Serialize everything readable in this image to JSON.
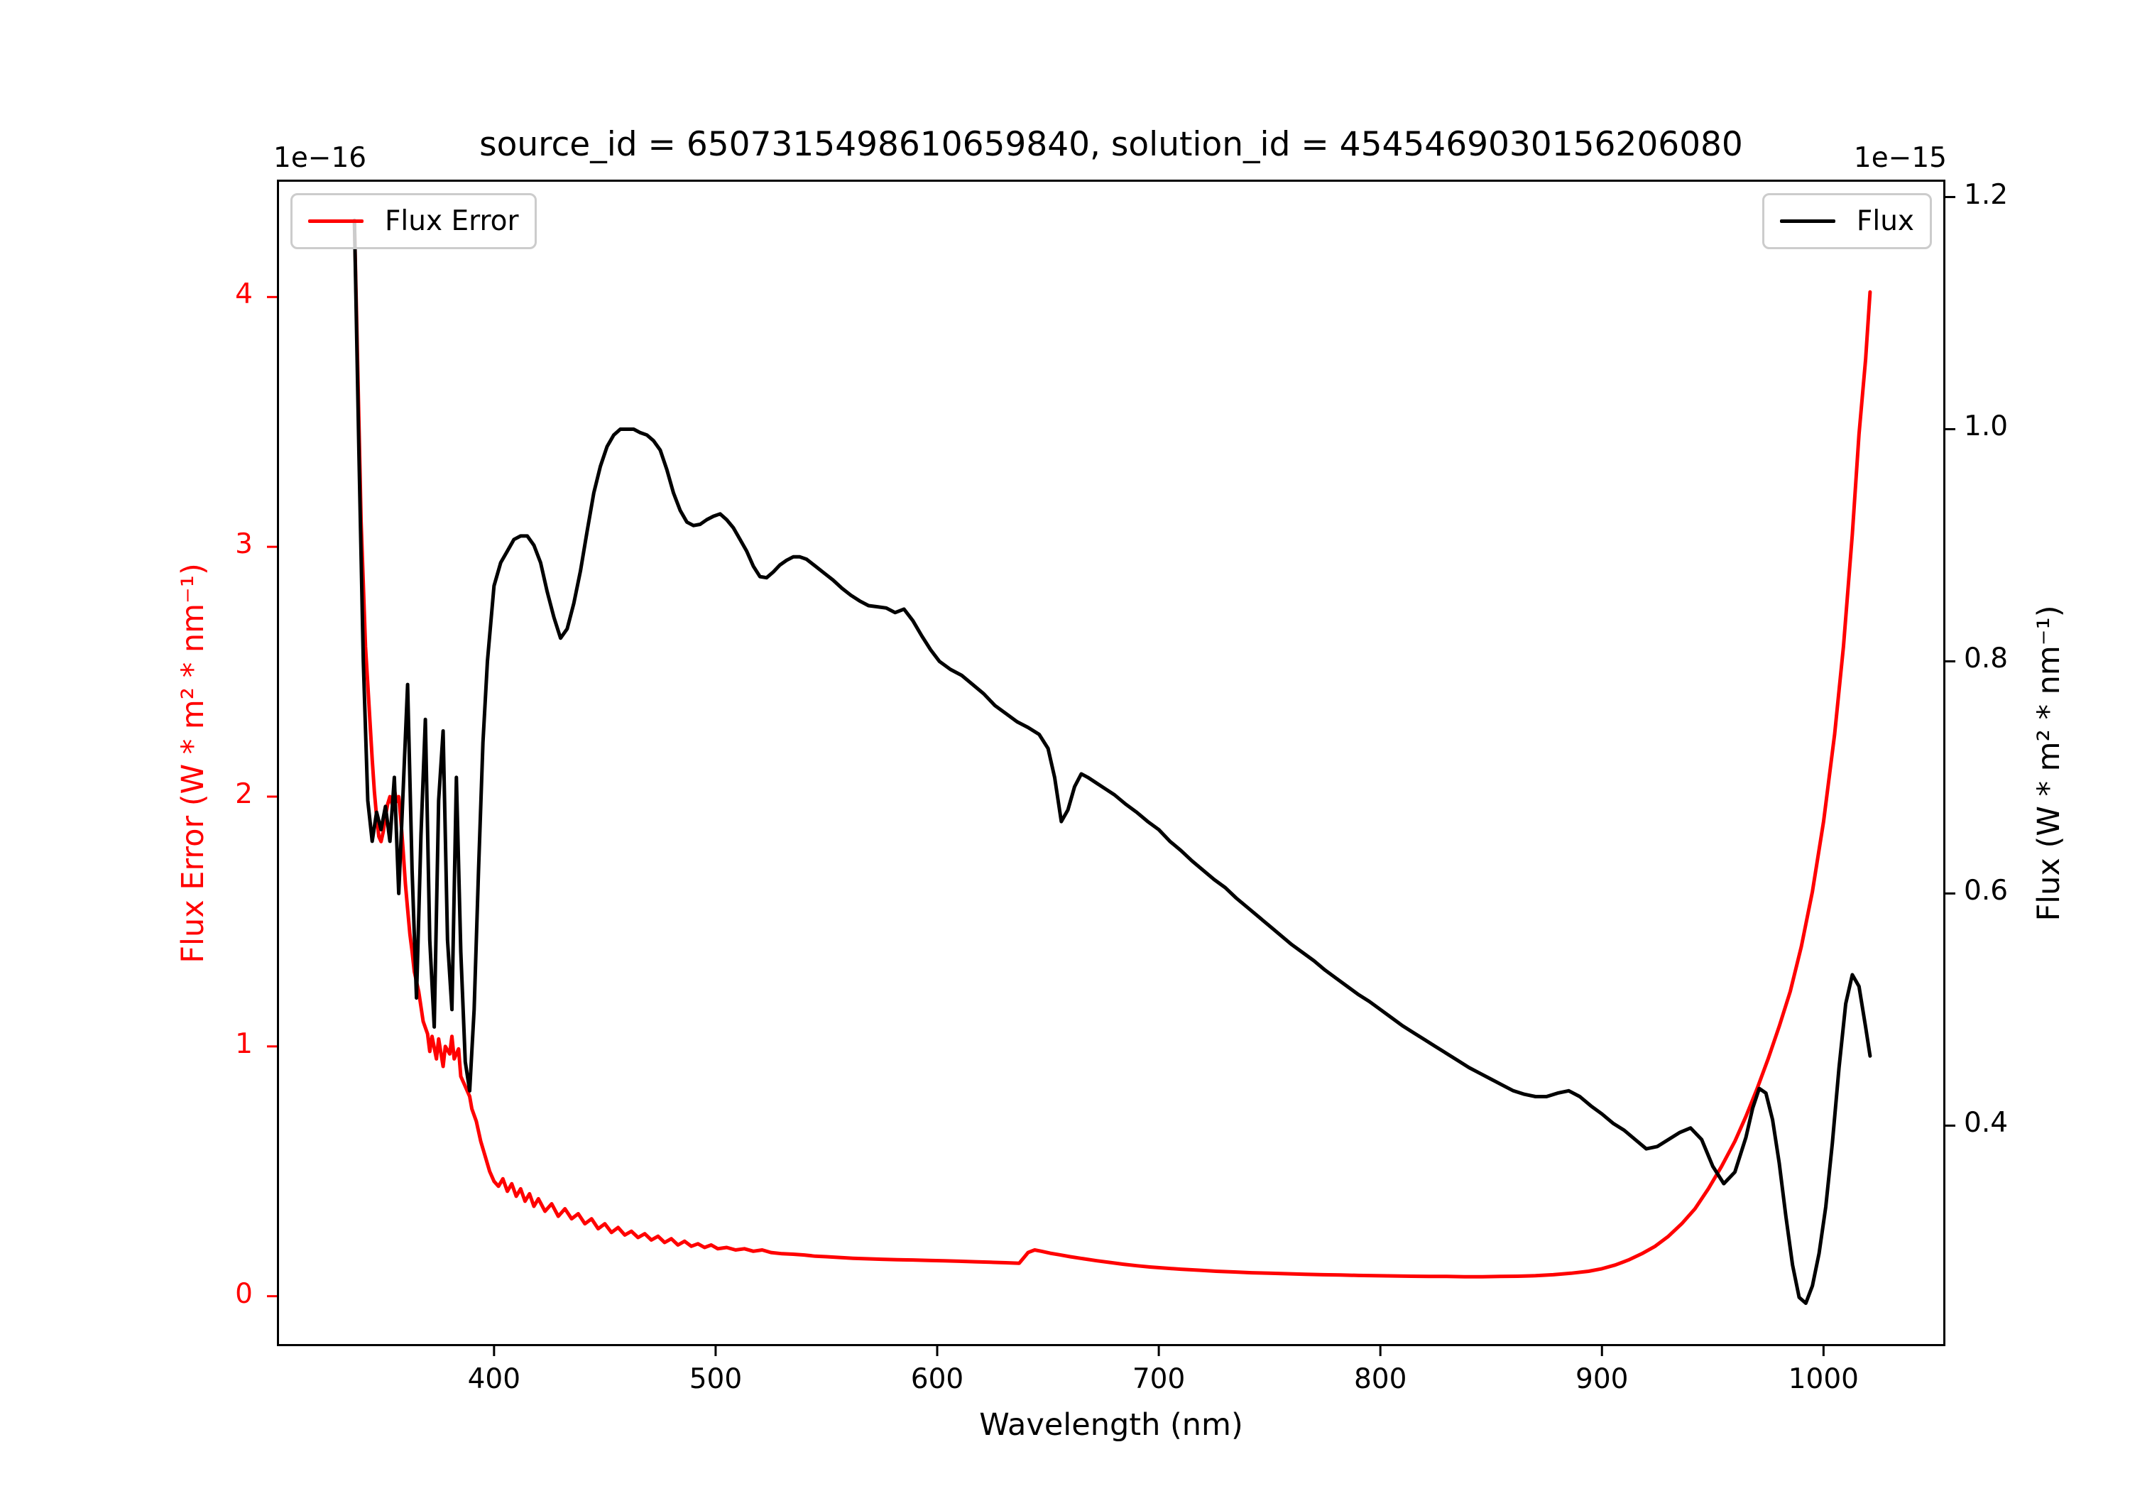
{
  "chart_data": {
    "type": "line",
    "title": "source_id = 6507315498610659840, solution_id = 4545469030156206080",
    "xlabel": "Wavelength (nm)",
    "ylabel_left": "Flux Error (W * m² * nm⁻¹)",
    "ylabel_right": "Flux (W * m² * nm⁻¹)",
    "offset_text_left": "1e−16",
    "offset_text_right": "1e−15",
    "grid": false,
    "xlim": [
      302,
      1055
    ],
    "ylim_left": [
      -0.2,
      4.47
    ],
    "ylim_right": [
      0.21,
      1.215
    ],
    "xticks": [
      400,
      500,
      600,
      700,
      800,
      900,
      1000
    ],
    "xtick_labels": [
      "400",
      "500",
      "600",
      "700",
      "800",
      "900",
      "1000"
    ],
    "yticks_left": [
      0,
      1,
      2,
      3,
      4
    ],
    "ytick_labels_left": [
      "0",
      "1",
      "2",
      "3",
      "4"
    ],
    "yticks_right": [
      0.4,
      0.6,
      0.8,
      1.0,
      1.2
    ],
    "ytick_labels_right": [
      "0.4",
      "0.6",
      "0.8",
      "1.0",
      "1.2"
    ],
    "legend_positions": [
      "upper left",
      "upper right"
    ],
    "series": [
      {
        "name": "Flux Error",
        "axis": "left",
        "color": "#ff0000",
        "unit_scale": "1e-16",
        "x": [
          337,
          338,
          339,
          340,
          341,
          342,
          343,
          344,
          345,
          346,
          347,
          348,
          349,
          350,
          351,
          352,
          353,
          354,
          355,
          356,
          357,
          358,
          359,
          360,
          361,
          362,
          363,
          364,
          366,
          368,
          370,
          371,
          372,
          374,
          375,
          377,
          378,
          380,
          381,
          382,
          384,
          385,
          387,
          389,
          390,
          392,
          394,
          396,
          398,
          400,
          402,
          404,
          406,
          408,
          410,
          412,
          414,
          416,
          418,
          420,
          423,
          426,
          429,
          432,
          435,
          438,
          441,
          444,
          447,
          450,
          453,
          456,
          459,
          462,
          465,
          468,
          471,
          474,
          477,
          480,
          483,
          486,
          489,
          492,
          495,
          498,
          501,
          505,
          509,
          513,
          517,
          521,
          525,
          530,
          535,
          540,
          545,
          550,
          556,
          562,
          568,
          575,
          582,
          589,
          596,
          603,
          610,
          617,
          624,
          631,
          637,
          641,
          644,
          647,
          651,
          655,
          660,
          666,
          672,
          678,
          684,
          690,
          696,
          702,
          710,
          718,
          726,
          734,
          742,
          750,
          758,
          766,
          774,
          782,
          790,
          798,
          806,
          814,
          822,
          830,
          838,
          846,
          854,
          862,
          870,
          878,
          886,
          894,
          900,
          906,
          912,
          918,
          924,
          930,
          936,
          942,
          948,
          954,
          960,
          965,
          970,
          975,
          980,
          985,
          990,
          995,
          1000,
          1005,
          1009,
          1013,
          1016,
          1019,
          1021
        ],
        "y": [
          4.3,
          3.9,
          3.5,
          3.1,
          2.85,
          2.6,
          2.45,
          2.3,
          2.15,
          2.02,
          1.92,
          1.84,
          1.82,
          1.86,
          1.92,
          1.97,
          2.0,
          1.97,
          2.03,
          1.98,
          2.0,
          1.9,
          1.78,
          1.65,
          1.55,
          1.45,
          1.38,
          1.3,
          1.22,
          1.1,
          1.05,
          0.98,
          1.04,
          0.95,
          1.03,
          0.92,
          1.0,
          0.97,
          1.04,
          0.95,
          0.99,
          0.88,
          0.84,
          0.8,
          0.75,
          0.7,
          0.62,
          0.56,
          0.5,
          0.46,
          0.44,
          0.47,
          0.42,
          0.45,
          0.4,
          0.43,
          0.38,
          0.41,
          0.36,
          0.39,
          0.34,
          0.37,
          0.32,
          0.35,
          0.31,
          0.33,
          0.29,
          0.31,
          0.27,
          0.29,
          0.255,
          0.275,
          0.245,
          0.26,
          0.235,
          0.25,
          0.225,
          0.24,
          0.215,
          0.23,
          0.205,
          0.22,
          0.2,
          0.21,
          0.195,
          0.205,
          0.19,
          0.195,
          0.185,
          0.19,
          0.18,
          0.185,
          0.175,
          0.17,
          0.168,
          0.165,
          0.16,
          0.158,
          0.155,
          0.152,
          0.15,
          0.148,
          0.146,
          0.145,
          0.143,
          0.142,
          0.14,
          0.138,
          0.136,
          0.134,
          0.132,
          0.175,
          0.185,
          0.18,
          0.172,
          0.166,
          0.158,
          0.15,
          0.142,
          0.135,
          0.128,
          0.122,
          0.117,
          0.113,
          0.108,
          0.104,
          0.1,
          0.097,
          0.094,
          0.092,
          0.09,
          0.088,
          0.086,
          0.085,
          0.083,
          0.082,
          0.081,
          0.08,
          0.079,
          0.079,
          0.078,
          0.078,
          0.079,
          0.08,
          0.082,
          0.086,
          0.092,
          0.1,
          0.11,
          0.125,
          0.145,
          0.17,
          0.2,
          0.24,
          0.29,
          0.35,
          0.43,
          0.52,
          0.62,
          0.72,
          0.83,
          0.95,
          1.08,
          1.22,
          1.4,
          1.62,
          1.9,
          2.25,
          2.6,
          3.05,
          3.45,
          3.75,
          4.02
        ]
      },
      {
        "name": "Flux",
        "axis": "right",
        "color": "#000000",
        "unit_scale": "1e-15",
        "x": [
          337,
          339,
          341,
          343,
          345,
          347,
          349,
          351,
          353,
          355,
          357,
          359,
          361,
          363,
          365,
          367,
          369,
          371,
          373,
          375,
          377,
          379,
          381,
          383,
          385,
          387,
          389,
          391,
          393,
          395,
          397,
          400,
          403,
          406,
          409,
          412,
          415,
          418,
          421,
          424,
          427,
          430,
          433,
          436,
          439,
          442,
          445,
          448,
          451,
          454,
          457,
          460,
          463,
          466,
          469,
          472,
          475,
          478,
          481,
          484,
          487,
          490,
          493,
          496,
          499,
          502,
          505,
          508,
          511,
          514,
          517,
          520,
          523,
          526,
          529,
          532,
          535,
          538,
          541,
          545,
          549,
          553,
          557,
          561,
          565,
          569,
          573,
          577,
          581,
          585,
          589,
          593,
          597,
          601,
          606,
          611,
          616,
          621,
          626,
          631,
          636,
          641,
          646,
          650,
          653,
          656,
          659,
          662,
          665,
          668,
          672,
          676,
          680,
          685,
          690,
          695,
          700,
          705,
          710,
          715,
          720,
          725,
          730,
          735,
          740,
          745,
          750,
          755,
          760,
          765,
          770,
          775,
          780,
          785,
          790,
          795,
          800,
          805,
          810,
          815,
          820,
          825,
          830,
          835,
          840,
          845,
          850,
          855,
          860,
          865,
          870,
          875,
          880,
          885,
          890,
          895,
          900,
          905,
          910,
          915,
          920,
          925,
          930,
          935,
          940,
          945,
          950,
          955,
          960,
          965,
          968,
          971,
          974,
          977,
          980,
          983,
          986,
          989,
          992,
          995,
          998,
          1001,
          1004,
          1007,
          1010,
          1013,
          1016,
          1019,
          1021
        ],
        "y": [
          1.18,
          0.98,
          0.8,
          0.68,
          0.645,
          0.67,
          0.655,
          0.675,
          0.645,
          0.7,
          0.6,
          0.69,
          0.78,
          0.62,
          0.51,
          0.65,
          0.75,
          0.56,
          0.485,
          0.68,
          0.74,
          0.56,
          0.5,
          0.7,
          0.55,
          0.455,
          0.43,
          0.5,
          0.62,
          0.73,
          0.8,
          0.865,
          0.885,
          0.895,
          0.905,
          0.908,
          0.908,
          0.9,
          0.885,
          0.86,
          0.838,
          0.82,
          0.828,
          0.85,
          0.878,
          0.912,
          0.945,
          0.968,
          0.985,
          0.995,
          1.0,
          1.0,
          1.0,
          0.997,
          0.995,
          0.99,
          0.982,
          0.965,
          0.945,
          0.93,
          0.92,
          0.917,
          0.918,
          0.922,
          0.925,
          0.927,
          0.922,
          0.915,
          0.905,
          0.895,
          0.882,
          0.873,
          0.872,
          0.877,
          0.883,
          0.887,
          0.89,
          0.89,
          0.888,
          0.882,
          0.876,
          0.87,
          0.863,
          0.857,
          0.852,
          0.848,
          0.847,
          0.846,
          0.842,
          0.845,
          0.835,
          0.822,
          0.81,
          0.8,
          0.793,
          0.788,
          0.78,
          0.772,
          0.762,
          0.755,
          0.748,
          0.743,
          0.737,
          0.725,
          0.7,
          0.662,
          0.672,
          0.692,
          0.703,
          0.7,
          0.695,
          0.69,
          0.685,
          0.677,
          0.67,
          0.662,
          0.655,
          0.645,
          0.637,
          0.628,
          0.62,
          0.612,
          0.605,
          0.596,
          0.588,
          0.58,
          0.572,
          0.564,
          0.556,
          0.549,
          0.542,
          0.534,
          0.527,
          0.52,
          0.513,
          0.507,
          0.5,
          0.493,
          0.486,
          0.48,
          0.474,
          0.468,
          0.462,
          0.456,
          0.45,
          0.445,
          0.44,
          0.435,
          0.43,
          0.427,
          0.425,
          0.425,
          0.428,
          0.43,
          0.425,
          0.417,
          0.41,
          0.402,
          0.396,
          0.388,
          0.38,
          0.382,
          0.388,
          0.394,
          0.398,
          0.388,
          0.365,
          0.35,
          0.36,
          0.39,
          0.415,
          0.432,
          0.428,
          0.405,
          0.368,
          0.322,
          0.28,
          0.252,
          0.247,
          0.262,
          0.29,
          0.33,
          0.385,
          0.45,
          0.505,
          0.53,
          0.52,
          0.485,
          0.46
        ]
      }
    ]
  }
}
